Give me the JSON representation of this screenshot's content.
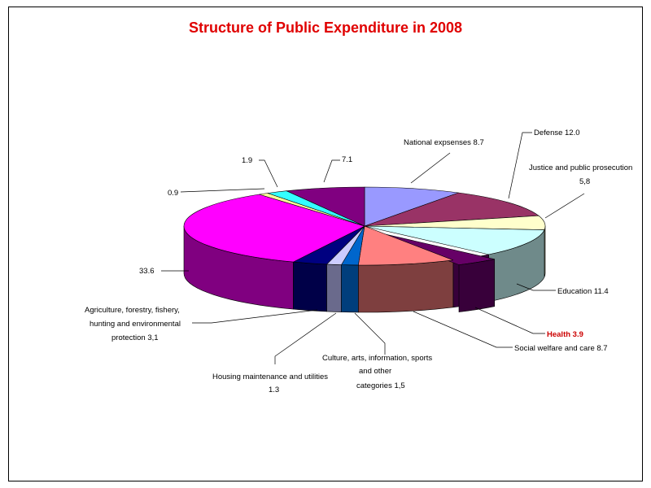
{
  "chart_data": {
    "type": "pie",
    "title": "Structure of Public Expenditure in 2008",
    "slices": [
      {
        "label": "National expsenses",
        "value": 8.7,
        "display": "8.7",
        "color": "#9999ff",
        "side": "#5f5fb0"
      },
      {
        "label": "Defense",
        "value": 12.0,
        "display": "12.0",
        "color": "#993366",
        "side": "#5e1f3e"
      },
      {
        "label": "Justice and public prosecution",
        "value": 5.8,
        "display": "5,8",
        "color": "#ffffcc",
        "side": "#b0b08a"
      },
      {
        "label": "Education",
        "value": 11.4,
        "display": "11.4",
        "color": "#ccffff",
        "side": "#6f8a8a"
      },
      {
        "label": "Health",
        "value": 3.9,
        "display": "3.9",
        "color": "#660066",
        "side": "#38003a",
        "highlight": true
      },
      {
        "label": "Social welfare and care",
        "value": 8.7,
        "display": "8.7",
        "color": "#ff8080",
        "side": "#7e3f3f"
      },
      {
        "label": "Culture, arts, information, sports and other categories",
        "value": 1.5,
        "display": "1,5",
        "color": "#0066cc",
        "side": "#003e7c"
      },
      {
        "label": "Housing maintenance and utilities",
        "value": 1.3,
        "display": "1.3",
        "color": "#ccccff",
        "side": "#6a6a8c"
      },
      {
        "label": "Agriculture, forestry, fishery, hunting and environmental protection",
        "value": 3.1,
        "display": "3,1",
        "color": "#000080",
        "side": "#000048"
      },
      {
        "label": "",
        "value": 33.6,
        "display": "33.6",
        "color": "#ff00ff",
        "side": "#800080"
      },
      {
        "label": "",
        "value": 0.9,
        "display": "0.9",
        "color": "#ffff99",
        "side": "#9a9a5c"
      },
      {
        "label": "",
        "value": 1.9,
        "display": "1.9",
        "color": "#33ffff",
        "side": "#1a8f8f"
      },
      {
        "label": "",
        "value": 7.1,
        "display": "7.1",
        "color": "#800080",
        "side": "#4a004a"
      }
    ]
  }
}
